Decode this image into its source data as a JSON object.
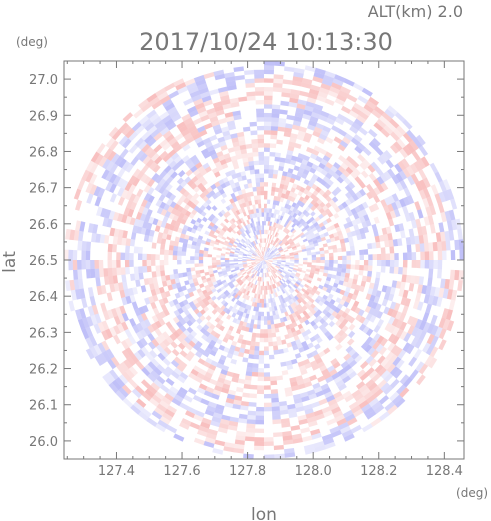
{
  "chart_data": {
    "type": "heatmap",
    "title": "2017/10/24 10:13:30",
    "subtitle": "ALT(km) 2.0",
    "xlabel": "lon",
    "ylabel": "lat",
    "x_unit": "(deg)",
    "y_unit": "(deg)",
    "xlim": [
      127.24,
      128.46
    ],
    "ylim": [
      25.95,
      27.05
    ],
    "x_ticks": [
      127.4,
      127.6,
      127.8,
      128.0,
      128.2,
      128.4
    ],
    "x_tick_labels": [
      "127.4",
      "127.6",
      "127.8",
      "128.0",
      "128.2",
      "128.4"
    ],
    "y_ticks": [
      26.0,
      26.1,
      26.2,
      26.3,
      26.4,
      26.5,
      26.6,
      26.7,
      26.8,
      26.9,
      27.0
    ],
    "y_tick_labels": [
      "26.0",
      "26.1",
      "26.2",
      "26.3",
      "26.4",
      "26.5",
      "26.6",
      "26.7",
      "26.8",
      "26.9",
      "27.0"
    ],
    "center": {
      "lon": 127.85,
      "lat": 26.5
    },
    "radius_deg": {
      "lon": 0.61,
      "lat": 0.55
    },
    "colormap": {
      "positive": "#f07070",
      "negative": "#7070f0",
      "zero": "#ffffff"
    },
    "grid": false,
    "legend": "none"
  }
}
